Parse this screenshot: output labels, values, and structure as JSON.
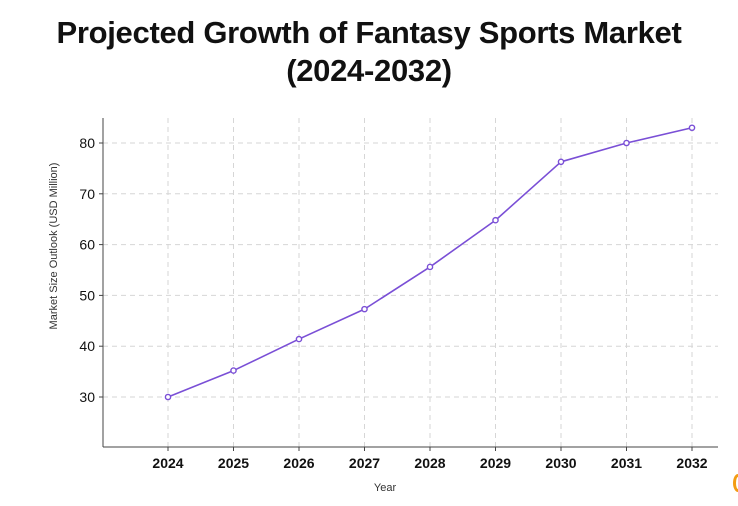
{
  "title": {
    "line1": "Projected Growth of Fantasy Sports Market",
    "line2": "(2024-2032)"
  },
  "colors": {
    "line": "#7a4fd6",
    "grid": "#d6d6d6",
    "axis": "#444444",
    "text": "#111111"
  },
  "chart_data": {
    "type": "line",
    "x": [
      "2024",
      "2025",
      "2026",
      "2027",
      "2028",
      "2029",
      "2030",
      "2031",
      "2032"
    ],
    "series": [
      {
        "values": [
          30.0,
          35.2,
          41.4,
          47.3,
          55.6,
          64.8,
          76.3,
          80.0,
          83.0
        ]
      }
    ],
    "xlabel": "Year",
    "ylabel": "Market Size Outlook (USD Million)",
    "yticks": [
      30,
      40,
      50,
      60,
      70,
      80
    ],
    "ylim": [
      20,
      86
    ],
    "grid": true,
    "legend": "none"
  }
}
